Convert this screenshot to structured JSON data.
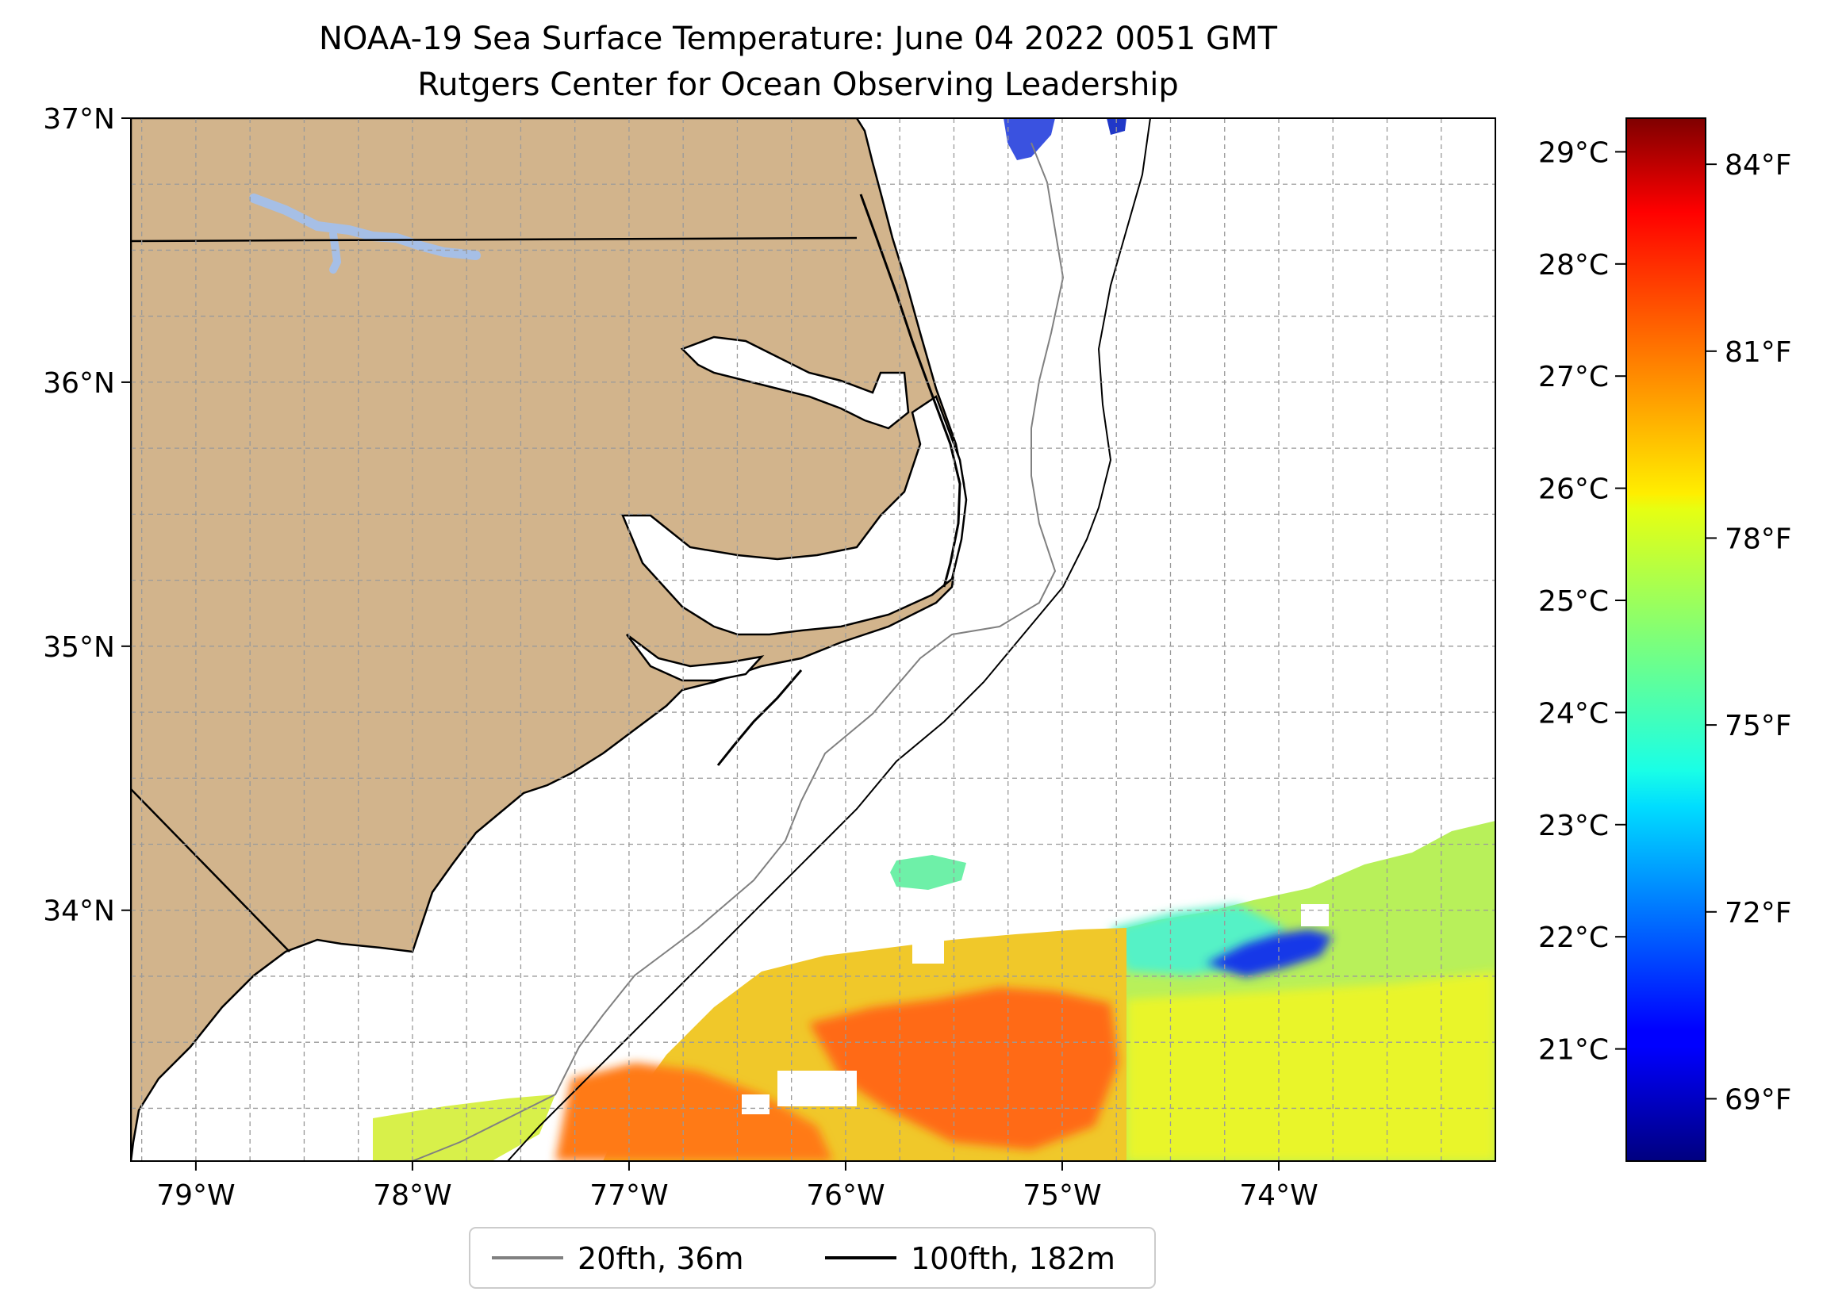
{
  "title": {
    "line1": "NOAA-19 Sea Surface Temperature: June 04 2022 0051 GMT",
    "line2": "Rutgers Center for Ocean Observing Leadership"
  },
  "map": {
    "lon_range": [
      -79.3,
      -73.0
    ],
    "lat_range": [
      33.05,
      37.0
    ],
    "lon_ticks": [
      {
        "value": -79,
        "label": "79°W"
      },
      {
        "value": -78,
        "label": "78°W"
      },
      {
        "value": -77,
        "label": "77°W"
      },
      {
        "value": -76,
        "label": "76°W"
      },
      {
        "value": -75,
        "label": "75°W"
      },
      {
        "value": -74,
        "label": "74°W"
      }
    ],
    "lat_ticks": [
      {
        "value": 34,
        "label": "34°N"
      },
      {
        "value": 35,
        "label": "35°N"
      },
      {
        "value": 36,
        "label": "36°N"
      },
      {
        "value": 37,
        "label": "37°N"
      }
    ],
    "grid_step_deg": 0.25,
    "grid": true,
    "land_color": "#d2b48c",
    "lake_color": "#a6bfe6",
    "ocean_color": "#ffffff"
  },
  "colorbar": {
    "colormap": "jet",
    "range_c": [
      20.0,
      29.3
    ],
    "celsius_ticks": [
      {
        "value": 21,
        "label": "21°C"
      },
      {
        "value": 22,
        "label": "22°C"
      },
      {
        "value": 23,
        "label": "23°C"
      },
      {
        "value": 24,
        "label": "24°C"
      },
      {
        "value": 25,
        "label": "25°C"
      },
      {
        "value": 26,
        "label": "26°C"
      },
      {
        "value": 27,
        "label": "27°C"
      },
      {
        "value": 28,
        "label": "28°C"
      },
      {
        "value": 29,
        "label": "29°C"
      }
    ],
    "fahrenheit_ticks": [
      {
        "value": 69,
        "label": "69°F"
      },
      {
        "value": 72,
        "label": "72°F"
      },
      {
        "value": 75,
        "label": "75°F"
      },
      {
        "value": 78,
        "label": "78°F"
      },
      {
        "value": 81,
        "label": "81°F"
      },
      {
        "value": 84,
        "label": "84°F"
      }
    ]
  },
  "legend": {
    "placement": "bottom-center",
    "items": [
      {
        "label": "20fth, 36m",
        "color": "#808080"
      },
      {
        "label": "100fth, 182m",
        "color": "#000000"
      }
    ]
  }
}
